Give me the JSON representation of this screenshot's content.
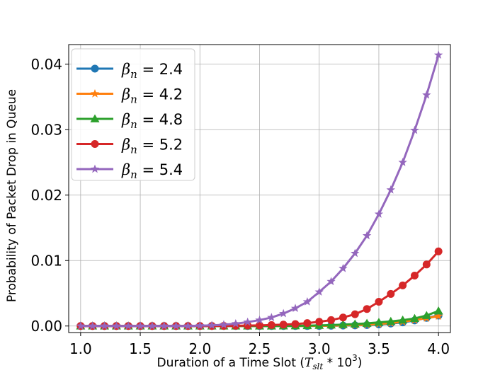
{
  "chart_data": {
    "type": "line",
    "xlabel": "Duration of a Time Slot (",
    "xlabel_math": "T",
    "xlabel_sub": "slt",
    "xlabel_mid": " * 10",
    "xlabel_sup": "3",
    "xlabel_end": ")",
    "ylabel": "Probability of Packet Drop in Queue",
    "xlim": [
      0.9,
      4.1
    ],
    "ylim": [
      -0.001,
      0.043
    ],
    "xticks": [
      1.0,
      1.5,
      2.0,
      2.5,
      3.0,
      3.5,
      4.0
    ],
    "xtick_labels": [
      "1.0",
      "1.5",
      "2.0",
      "2.5",
      "3.0",
      "3.5",
      "4.0"
    ],
    "yticks": [
      0.0,
      0.01,
      0.02,
      0.03,
      0.04
    ],
    "ytick_labels": [
      "0.00",
      "0.01",
      "0.02",
      "0.03",
      "0.04"
    ],
    "grid": true,
    "legend_position": "top-left",
    "legend_symbol": "β",
    "legend_sub": "n",
    "x": [
      1.0,
      1.1,
      1.2,
      1.3,
      1.4,
      1.5,
      1.6,
      1.7,
      1.8,
      1.9,
      2.0,
      2.1,
      2.2,
      2.3,
      2.4,
      2.5,
      2.6,
      2.7,
      2.8,
      2.9,
      3.0,
      3.1,
      3.2,
      3.3,
      3.4,
      3.5,
      3.6,
      3.7,
      3.8,
      3.9,
      4.0
    ],
    "series": [
      {
        "name": "= 2.4",
        "color": "#1f77b4",
        "marker": "circle",
        "values": [
          0,
          0,
          0,
          0,
          0,
          0,
          0,
          0,
          0,
          0,
          0,
          0,
          0,
          0,
          0,
          0,
          0,
          0,
          0,
          0,
          2e-05,
          4e-05,
          7e-05,
          0.0001,
          0.00015,
          0.00025,
          0.00038,
          0.00055,
          0.00085,
          0.00125,
          0.0016
        ]
      },
      {
        "name": "= 4.2",
        "color": "#ff7f0e",
        "marker": "star",
        "values": [
          0,
          0,
          0,
          0,
          0,
          0,
          0,
          0,
          0,
          0,
          0,
          0,
          0,
          0,
          0,
          0,
          0,
          0,
          0,
          1e-05,
          3e-05,
          5e-05,
          9e-05,
          0.00014,
          0.00021,
          0.00031,
          0.00045,
          0.00065,
          0.0009,
          0.0012,
          0.0015
        ]
      },
      {
        "name": "= 4.8",
        "color": "#2ca02c",
        "marker": "triangle",
        "values": [
          0,
          0,
          0,
          0,
          0,
          0,
          0,
          0,
          0,
          0,
          0,
          0,
          0,
          0,
          0,
          0,
          0,
          1e-05,
          3e-05,
          6e-05,
          0.0001,
          0.00015,
          0.00022,
          0.0003,
          0.0004,
          0.00055,
          0.0007,
          0.0009,
          0.00115,
          0.0016,
          0.0023
        ]
      },
      {
        "name": "= 5.2",
        "color": "#d62728",
        "marker": "circle",
        "values": [
          0,
          0,
          0,
          0,
          0,
          0,
          0,
          0,
          0,
          0,
          0,
          0,
          2e-05,
          4e-05,
          7e-05,
          0.0001,
          0.00015,
          0.00022,
          0.0003,
          0.00045,
          0.00065,
          0.0009,
          0.0013,
          0.0018,
          0.0026,
          0.0037,
          0.0049,
          0.0062,
          0.0077,
          0.0094,
          0.0114
        ]
      },
      {
        "name": "= 5.4",
        "color": "#9467bd",
        "marker": "star",
        "values": [
          0,
          0,
          0,
          0,
          0,
          0,
          0,
          0,
          0,
          0,
          5e-05,
          0.0001,
          0.0002,
          0.00035,
          0.0006,
          0.0009,
          0.0013,
          0.0019,
          0.0027,
          0.0037,
          0.0052,
          0.0068,
          0.0088,
          0.0111,
          0.0138,
          0.0171,
          0.0208,
          0.025,
          0.0299,
          0.0353,
          0.0414
        ]
      }
    ]
  }
}
